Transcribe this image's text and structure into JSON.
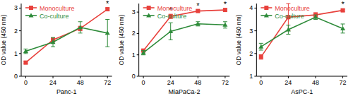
{
  "chart_data": [
    {
      "type": "line",
      "x_label": "Panc-1",
      "y_label": "OD value (450 nm)",
      "x": [
        0,
        24,
        48,
        72
      ],
      "xlim": [
        -4,
        76
      ],
      "xticks": [
        0,
        24,
        48,
        72
      ],
      "ylim": [
        0,
        3.2
      ],
      "yticks": [
        0,
        1,
        2,
        3
      ],
      "legend": "upper left",
      "series": [
        {
          "name": "Monoculture",
          "color": "#e8413c",
          "marker": "square",
          "values": [
            0.6,
            1.6,
            2.1,
            2.95
          ],
          "errors": [
            0.05,
            0.1,
            0.1,
            0.05
          ]
        },
        {
          "name": "Co-culture",
          "color": "#2e8b3a",
          "marker": "triangle",
          "values": [
            1.1,
            1.5,
            2.15,
            1.9
          ],
          "errors": [
            0.1,
            0.2,
            0.25,
            0.6
          ]
        }
      ],
      "annotations": [
        {
          "text": "*",
          "x": 72,
          "y": 3.05
        }
      ]
    },
    {
      "type": "line",
      "x_label": "MiaPaCa-2",
      "y_label": "OD value (450 nm)",
      "x": [
        0,
        24,
        48,
        72
      ],
      "xlim": [
        -4,
        76
      ],
      "xticks": [
        0,
        24,
        48,
        72
      ],
      "ylim": [
        0,
        3.4
      ],
      "yticks": [
        0,
        1,
        2,
        3
      ],
      "legend": "upper left",
      "series": [
        {
          "name": "Monoculture",
          "color": "#e8413c",
          "marker": "square",
          "values": [
            1.2,
            2.8,
            3.05,
            3.1
          ],
          "errors": [
            0.05,
            0.1,
            0.05,
            0.05
          ]
        },
        {
          "name": "Co-culture",
          "color": "#2e8b3a",
          "marker": "triangle",
          "values": [
            1.1,
            2.1,
            2.45,
            2.4
          ],
          "errors": [
            0.1,
            0.4,
            0.1,
            0.15
          ]
        }
      ],
      "annotations": [
        {
          "text": "*",
          "x": 24,
          "y": 2.95
        },
        {
          "text": "*",
          "x": 48,
          "y": 3.15
        },
        {
          "text": "*",
          "x": 72,
          "y": 3.2
        }
      ]
    },
    {
      "type": "line",
      "x_label": "AsPC-1",
      "y_label": "OD value (450 nm)",
      "x": [
        0,
        24,
        48,
        72
      ],
      "xlim": [
        -4,
        76
      ],
      "xticks": [
        0,
        24,
        48,
        72
      ],
      "ylim": [
        1,
        4.2
      ],
      "yticks": [
        1,
        2,
        3,
        4
      ],
      "legend": "upper left",
      "series": [
        {
          "name": "Monoculture",
          "color": "#e8413c",
          "marker": "square",
          "values": [
            1.85,
            3.6,
            3.7,
            3.9
          ],
          "errors": [
            0.1,
            0.6,
            0.1,
            0.05
          ]
        },
        {
          "name": "Co-culture",
          "color": "#2e8b3a",
          "marker": "triangle",
          "values": [
            2.3,
            3.05,
            3.6,
            3.1
          ],
          "errors": [
            0.15,
            0.2,
            0.1,
            0.2
          ]
        }
      ],
      "annotations": [
        {
          "text": "*",
          "x": 72,
          "y": 4.0
        }
      ]
    }
  ]
}
